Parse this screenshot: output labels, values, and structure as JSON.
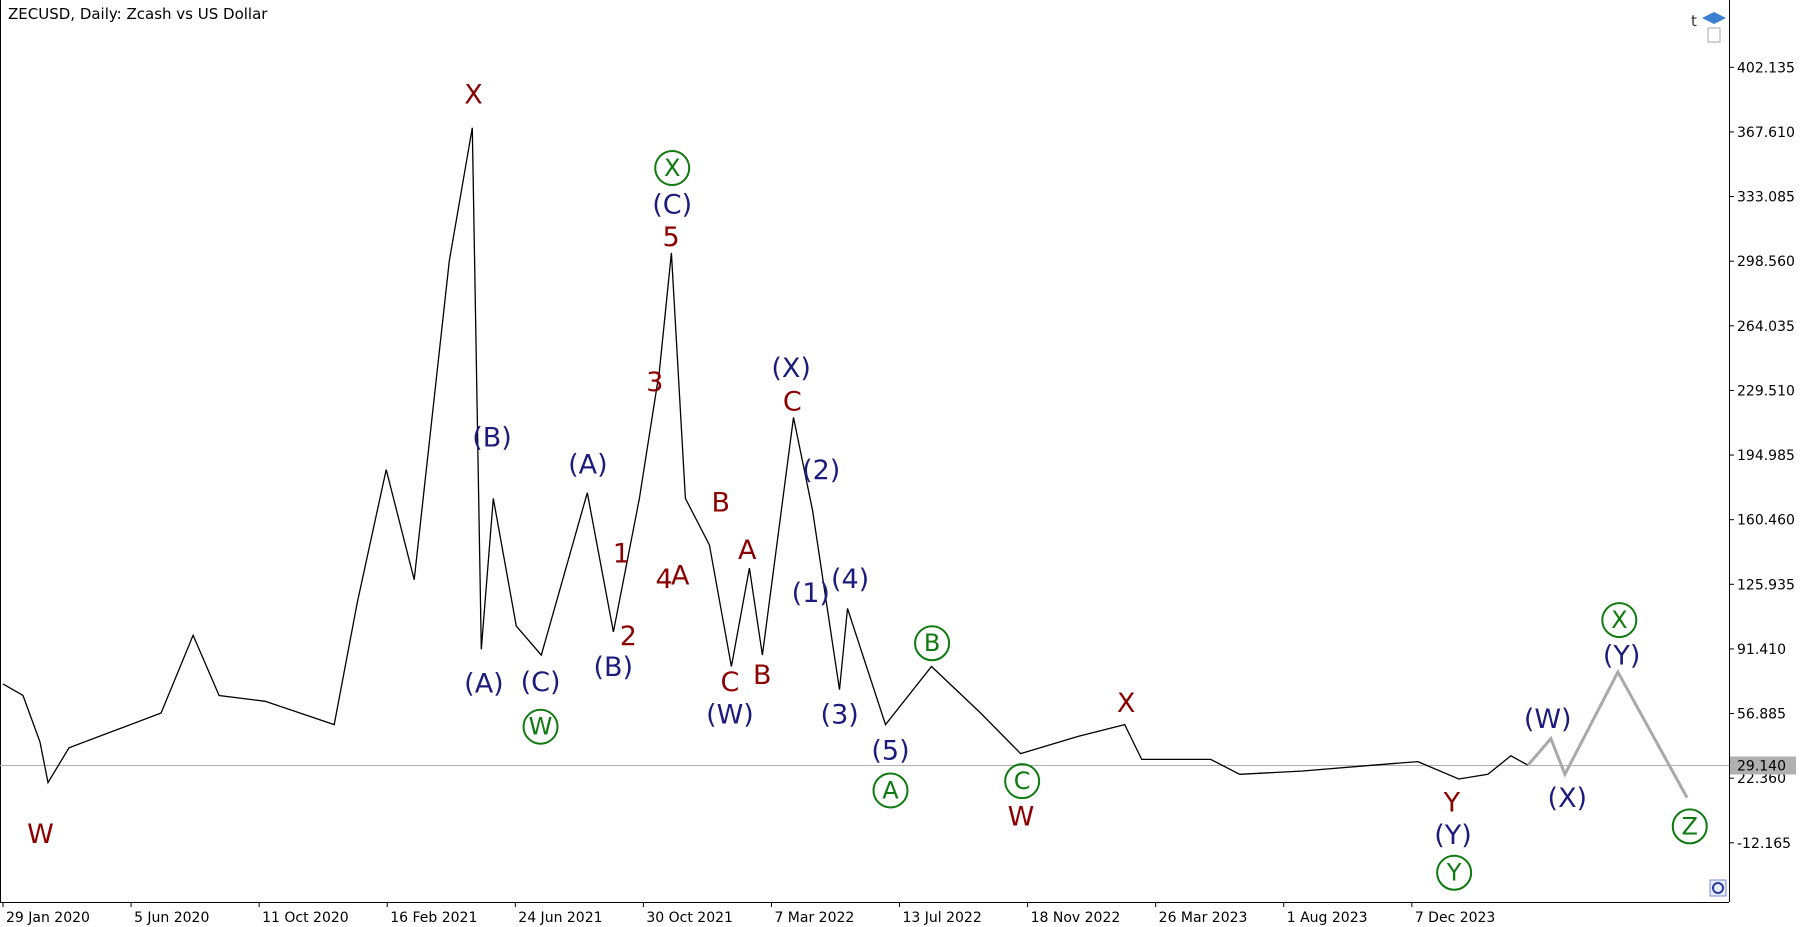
{
  "chart_data": {
    "type": "line",
    "title": "ZECUSD, Daily:  Zcash vs US Dollar",
    "xlim": [
      "2020-01-26",
      "2024-10-19"
    ],
    "ylim": [
      -43.8,
      438.1
    ],
    "yticks": [
      402.135,
      {
        "value": 367.61,
        "label": "367.610"
      },
      333.085,
      {
        "value": 298.56,
        "label": "298.560"
      },
      264.035,
      {
        "value": 229.51,
        "label": "229.510"
      },
      194.985,
      {
        "value": 160.46,
        "label": "160.460"
      },
      125.935,
      {
        "value": 91.41,
        "label": "91.410"
      },
      56.885,
      {
        "value": 22.36,
        "label": "22.360"
      },
      -12.165
    ],
    "xticks": [
      {
        "value": "2020-01-29",
        "label": "29 Jan 2020"
      },
      {
        "value": "2020-06-05",
        "label": "5 Jun 2020"
      },
      {
        "value": "2020-10-11",
        "label": "11 Oct 2020"
      },
      {
        "value": "2021-02-16",
        "label": "16 Feb 2021"
      },
      {
        "value": "2021-06-24",
        "label": "24 Jun 2021"
      },
      {
        "value": "2021-10-30",
        "label": "30 Oct 2021"
      },
      {
        "value": "2022-03-07",
        "label": "7 Mar 2022"
      },
      {
        "value": "2022-07-13",
        "label": "13 Jul 2022"
      },
      {
        "value": "2022-11-18",
        "label": "18 Nov 2022"
      },
      {
        "value": "2023-03-26",
        "label": "26 Mar 2023"
      },
      {
        "value": "2023-08-01",
        "label": "1 Aug 2023"
      },
      {
        "value": "2023-12-07",
        "label": "7 Dec 2023"
      }
    ],
    "current_price": {
      "value": 29.14,
      "label": "29.140",
      "color": "#b0b0b0"
    },
    "series": [
      {
        "color": "#000000",
        "x": [
          "2020-01-29",
          "2020-02-18",
          "2020-03-06",
          "2020-03-14",
          "2020-04-04",
          "2020-05-20",
          "2020-07-05",
          "2020-08-06",
          "2020-09-01",
          "2020-10-17",
          "2020-12-25",
          "2021-01-17",
          "2021-02-15",
          "2021-03-15",
          "2021-04-19",
          "2021-05-12",
          "2021-05-21",
          "2021-06-02",
          "2021-06-25",
          "2021-07-20",
          "2021-09-04",
          "2021-09-30",
          "2021-10-26",
          "2021-11-15",
          "2021-11-27",
          "2021-12-11",
          "2022-01-04",
          "2022-01-26",
          "2022-02-13",
          "2022-02-26",
          "2022-03-29",
          "2022-04-17",
          "2022-05-14",
          "2022-05-22",
          "2022-06-29",
          "2022-08-14",
          "2022-10-02",
          "2022-11-11",
          "2023-01-08",
          "2023-02-23",
          "2023-03-12",
          "2023-05-20",
          "2023-06-18",
          "2023-08-20",
          "2023-10-29",
          "2023-12-13",
          "2024-01-23",
          "2024-02-21",
          "2024-03-15",
          "2024-04-01"
        ],
        "values": [
          72.7,
          66.5,
          41.7,
          20.0,
          38.6,
          47.9,
          57.2,
          98.7,
          66.5,
          63.4,
          51.0,
          116.0,
          187.2,
          128.4,
          298.7,
          369.9,
          91.2,
          171.8,
          103.6,
          88.1,
          174.8,
          100.5,
          171.8,
          239.9,
          303.0,
          171.8,
          147.0,
          82.0,
          134.6,
          88.1,
          215.1,
          165.6,
          69.6,
          113.0,
          51.0,
          82.0,
          57.2,
          35.5,
          44.8,
          51.0,
          32.4,
          32.4,
          24.4,
          26.2,
          29.3,
          31.2,
          21.9,
          24.4,
          34.3,
          29.3
        ]
      },
      {
        "color": "#a9a9a9",
        "x": [
          "2024-04-01",
          "2024-04-24",
          "2024-05-08",
          "2024-06-30",
          "2024-09-07"
        ],
        "values": [
          29.3,
          43.5,
          24.4,
          79.1,
          12.0
        ]
      }
    ],
    "annotations": [
      {
        "text": "W",
        "color": "#8b0000",
        "circled": false
      },
      {
        "text": "X",
        "color": "#8b0000",
        "circled": false
      },
      {
        "text": "5",
        "color": "#8b0000",
        "circled": false
      },
      {
        "text": "3",
        "color": "#8b0000",
        "circled": false
      },
      {
        "text": "1",
        "color": "#8b0000",
        "circled": false
      },
      {
        "text": "2",
        "color": "#8b0000",
        "circled": false
      },
      {
        "text": "4",
        "color": "#8b0000",
        "circled": false
      },
      {
        "text": "A",
        "color": "#8b0000",
        "circled": false
      },
      {
        "text": "B",
        "color": "#8b0000",
        "circled": false
      },
      {
        "text": "A",
        "color": "#8b0000",
        "circled": false
      },
      {
        "text": "C",
        "color": "#8b0000",
        "circled": false
      },
      {
        "text": "C",
        "color": "#8b0000",
        "circled": false
      },
      {
        "text": "B",
        "color": "#8b0000",
        "circled": false
      },
      {
        "text": "X",
        "color": "#8b0000",
        "circled": false
      },
      {
        "text": "W",
        "color": "#8b0000",
        "circled": false
      },
      {
        "text": "Y",
        "color": "#8b0000",
        "circled": false
      },
      {
        "text": "(B)",
        "color": "#1c1c7c",
        "circled": false
      },
      {
        "text": "(A)",
        "color": "#1c1c7c",
        "circled": false
      },
      {
        "text": "(C)",
        "color": "#1c1c7c",
        "circled": false
      },
      {
        "text": "(A)",
        "color": "#1c1c7c",
        "circled": false
      },
      {
        "text": "(B)",
        "color": "#1c1c7c",
        "circled": false
      },
      {
        "text": "(C)",
        "color": "#1c1c7c",
        "circled": false
      },
      {
        "text": "(X)",
        "color": "#1c1c7c",
        "circled": false
      },
      {
        "text": "(2)",
        "color": "#1c1c7c",
        "circled": false
      },
      {
        "text": "(1)",
        "color": "#1c1c7c",
        "circled": false
      },
      {
        "text": "(4)",
        "color": "#1c1c7c",
        "circled": false
      },
      {
        "text": "(3)",
        "color": "#1c1c7c",
        "circled": false
      },
      {
        "text": "(5)",
        "color": "#1c1c7c",
        "circled": false
      },
      {
        "text": "(W)",
        "color": "#1c1c7c",
        "circled": false
      },
      {
        "text": "(Y)",
        "color": "#1c1c7c",
        "circled": false
      },
      {
        "text": "(W)",
        "color": "#1c1c7c",
        "circled": false
      },
      {
        "text": "(X)",
        "color": "#1c1c7c",
        "circled": false
      },
      {
        "text": "(Y)",
        "color": "#1c1c7c",
        "circled": false
      },
      {
        "text": "X",
        "color": "#0f7a0f",
        "circled": true
      },
      {
        "text": "W",
        "color": "#0f7a0f",
        "circled": true
      },
      {
        "text": "B",
        "color": "#0f7a0f",
        "circled": true
      },
      {
        "text": "A",
        "color": "#0f7a0f",
        "circled": true
      },
      {
        "text": "C",
        "color": "#0f7a0f",
        "circled": true
      },
      {
        "text": "Y",
        "color": "#0f7a0f",
        "circled": true
      },
      {
        "text": "X",
        "color": "#0f7a0f",
        "circled": true
      },
      {
        "text": "Z",
        "color": "#0f7a0f",
        "circled": true
      }
    ]
  }
}
